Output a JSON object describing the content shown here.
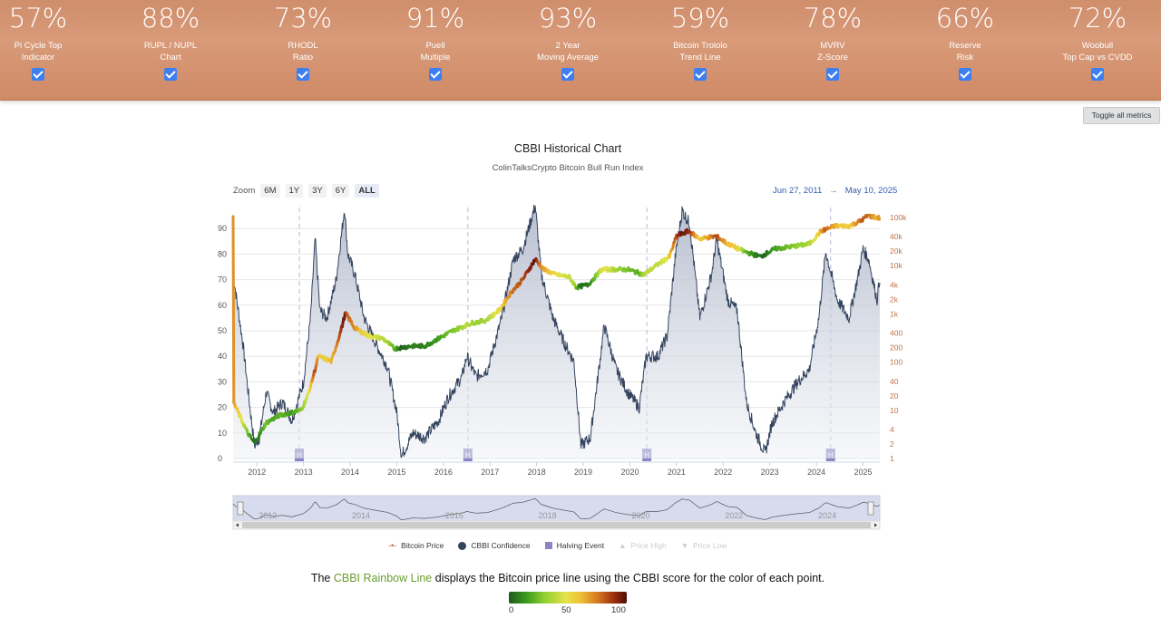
{
  "metrics": [
    {
      "pct": "57%",
      "line1": "Pi Cycle Top",
      "line2": "Indicator"
    },
    {
      "pct": "88%",
      "line1": "RUPL / NUPL",
      "line2": "Chart"
    },
    {
      "pct": "73%",
      "line1": "RHODL",
      "line2": "Ratio"
    },
    {
      "pct": "91%",
      "line1": "Puell",
      "line2": "Multiple"
    },
    {
      "pct": "93%",
      "line1": "2 Year",
      "line2": "Moving Average"
    },
    {
      "pct": "59%",
      "line1": "Bitcoin Trololo",
      "line2": "Trend Line"
    },
    {
      "pct": "78%",
      "line1": "MVRV",
      "line2": "Z-Score"
    },
    {
      "pct": "66%",
      "line1": "Reserve",
      "line2": "Risk"
    },
    {
      "pct": "72%",
      "line1": "Woobull",
      "line2": "Top Cap vs CVDD"
    }
  ],
  "toggle_label": "Toggle all metrics",
  "chart": {
    "title": "CBBI Historical Chart",
    "subtitle": "ColinTalksCrypto Bitcoin Bull Run Index",
    "zoom_label": "Zoom",
    "zoom_options": [
      "6M",
      "1Y",
      "3Y",
      "6Y",
      "ALL"
    ],
    "zoom_active": "ALL",
    "range_from": "Jun 27, 2011",
    "range_arrow": "→",
    "range_to": "May 10, 2025",
    "halving_marker": "H",
    "navigator_labels": [
      "2012",
      "2014",
      "2016",
      "2018",
      "2020",
      "2022",
      "2024"
    ]
  },
  "chart_data": {
    "type": "line",
    "x_ticks": [
      "2012",
      "2013",
      "2014",
      "2015",
      "2016",
      "2017",
      "2018",
      "2019",
      "2020",
      "2021",
      "2022",
      "2023",
      "2024",
      "2025"
    ],
    "y_left_ticks": [
      0,
      10,
      20,
      30,
      40,
      50,
      60,
      70,
      80,
      90
    ],
    "y_right_ticks": [
      "1",
      "2",
      "4",
      "10",
      "20",
      "40",
      "100",
      "200",
      "400",
      "1k",
      "2k",
      "4k",
      "10k",
      "20k",
      "40k",
      "100k"
    ],
    "halving_events": [
      "2012-11-28",
      "2016-07-09",
      "2020-05-11",
      "2024-04-20"
    ],
    "series": [
      {
        "name": "Bitcoin Price",
        "axis": "right",
        "scale": "log",
        "points": [
          [
            2011.5,
            14
          ],
          [
            2011.8,
            3
          ],
          [
            2011.95,
            2.5
          ],
          [
            2012.3,
            5
          ],
          [
            2012.6,
            10
          ],
          [
            2012.9,
            12
          ],
          [
            2013.1,
            20
          ],
          [
            2013.28,
            200
          ],
          [
            2013.35,
            100
          ],
          [
            2013.6,
            100
          ],
          [
            2013.85,
            1100
          ],
          [
            2013.95,
            700
          ],
          [
            2014.1,
            800
          ],
          [
            2014.3,
            450
          ],
          [
            2014.6,
            550
          ],
          [
            2014.9,
            330
          ],
          [
            2015.05,
            180
          ],
          [
            2015.3,
            240
          ],
          [
            2015.6,
            230
          ],
          [
            2015.9,
            400
          ],
          [
            2016.1,
            380
          ],
          [
            2016.45,
            700
          ],
          [
            2016.6,
            620
          ],
          [
            2016.9,
            760
          ],
          [
            2017.1,
            1000
          ],
          [
            2017.4,
            2500
          ],
          [
            2017.7,
            4500
          ],
          [
            2017.96,
            19000
          ],
          [
            2018.1,
            9000
          ],
          [
            2018.4,
            7000
          ],
          [
            2018.7,
            6500
          ],
          [
            2018.95,
            3200
          ],
          [
            2019.2,
            4000
          ],
          [
            2019.48,
            13000
          ],
          [
            2019.7,
            8500
          ],
          [
            2020.0,
            7200
          ],
          [
            2020.2,
            5000
          ],
          [
            2020.4,
            9000
          ],
          [
            2020.7,
            11000
          ],
          [
            2020.98,
            29000
          ],
          [
            2021.28,
            63000
          ],
          [
            2021.5,
            33000
          ],
          [
            2021.86,
            68000
          ],
          [
            2022.1,
            40000
          ],
          [
            2022.45,
            20000
          ],
          [
            2022.7,
            19000
          ],
          [
            2022.88,
            16000
          ],
          [
            2023.1,
            23000
          ],
          [
            2023.5,
            30000
          ],
          [
            2023.8,
            28000
          ],
          [
            2024.0,
            42000
          ],
          [
            2024.2,
            71000
          ],
          [
            2024.6,
            60000
          ],
          [
            2024.95,
            100000
          ],
          [
            2025.1,
            95000
          ],
          [
            2025.28,
            78000
          ],
          [
            2025.36,
            103000
          ]
        ]
      },
      {
        "name": "CBBI Confidence",
        "axis": "left",
        "points": [
          [
            2011.5,
            71
          ],
          [
            2011.7,
            45
          ],
          [
            2011.85,
            20
          ],
          [
            2011.95,
            5
          ],
          [
            2012.05,
            8
          ],
          [
            2012.2,
            26
          ],
          [
            2012.35,
            18
          ],
          [
            2012.55,
            22
          ],
          [
            2012.75,
            15
          ],
          [
            2012.9,
            24
          ],
          [
            2013.0,
            30
          ],
          [
            2013.15,
            55
          ],
          [
            2013.25,
            86
          ],
          [
            2013.35,
            58
          ],
          [
            2013.5,
            55
          ],
          [
            2013.7,
            70
          ],
          [
            2013.88,
            98
          ],
          [
            2013.95,
            80
          ],
          [
            2014.1,
            72
          ],
          [
            2014.3,
            55
          ],
          [
            2014.55,
            45
          ],
          [
            2014.8,
            36
          ],
          [
            2015.0,
            18
          ],
          [
            2015.1,
            1
          ],
          [
            2015.35,
            10
          ],
          [
            2015.6,
            8
          ],
          [
            2015.9,
            15
          ],
          [
            2016.1,
            24
          ],
          [
            2016.4,
            32
          ],
          [
            2016.5,
            40
          ],
          [
            2016.7,
            32
          ],
          [
            2016.95,
            35
          ],
          [
            2017.25,
            55
          ],
          [
            2017.5,
            78
          ],
          [
            2017.7,
            82
          ],
          [
            2017.97,
            99
          ],
          [
            2018.1,
            72
          ],
          [
            2018.35,
            55
          ],
          [
            2018.6,
            45
          ],
          [
            2018.8,
            38
          ],
          [
            2018.95,
            5
          ],
          [
            2019.15,
            8
          ],
          [
            2019.45,
            52
          ],
          [
            2019.7,
            35
          ],
          [
            2019.95,
            26
          ],
          [
            2020.2,
            20
          ],
          [
            2020.35,
            40
          ],
          [
            2020.6,
            40
          ],
          [
            2020.8,
            48
          ],
          [
            2020.98,
            80
          ],
          [
            2021.12,
            97
          ],
          [
            2021.28,
            92
          ],
          [
            2021.5,
            55
          ],
          [
            2021.75,
            72
          ],
          [
            2021.86,
            86
          ],
          [
            2022.1,
            62
          ],
          [
            2022.3,
            58
          ],
          [
            2022.5,
            22
          ],
          [
            2022.7,
            10
          ],
          [
            2022.9,
            2
          ],
          [
            2023.05,
            14
          ],
          [
            2023.3,
            22
          ],
          [
            2023.6,
            30
          ],
          [
            2023.85,
            35
          ],
          [
            2024.05,
            55
          ],
          [
            2024.2,
            81
          ],
          [
            2024.45,
            62
          ],
          [
            2024.7,
            55
          ],
          [
            2024.9,
            72
          ],
          [
            2025.0,
            82
          ],
          [
            2025.12,
            78
          ],
          [
            2025.3,
            62
          ],
          [
            2025.38,
            74
          ]
        ]
      }
    ],
    "rainbow_line": [
      [
        2011.5,
        22
      ],
      [
        2011.8,
        10
      ],
      [
        2011.95,
        6
      ],
      [
        2012.2,
        14
      ],
      [
        2012.5,
        17
      ],
      [
        2012.75,
        18
      ],
      [
        2012.95,
        19
      ],
      [
        2013.1,
        25
      ],
      [
        2013.25,
        35
      ],
      [
        2013.32,
        40
      ],
      [
        2013.6,
        38
      ],
      [
        2013.8,
        50
      ],
      [
        2013.9,
        57
      ],
      [
        2014.1,
        51
      ],
      [
        2014.4,
        48
      ],
      [
        2014.7,
        47
      ],
      [
        2014.95,
        43
      ],
      [
        2015.3,
        44
      ],
      [
        2015.6,
        44
      ],
      [
        2015.9,
        47
      ],
      [
        2016.2,
        50
      ],
      [
        2016.6,
        53
      ],
      [
        2016.9,
        54
      ],
      [
        2017.2,
        58
      ],
      [
        2017.45,
        65
      ],
      [
        2017.7,
        70
      ],
      [
        2017.97,
        78
      ],
      [
        2018.15,
        74
      ],
      [
        2018.4,
        72
      ],
      [
        2018.7,
        71
      ],
      [
        2018.85,
        67
      ],
      [
        2019.1,
        68
      ],
      [
        2019.4,
        74
      ],
      [
        2019.7,
        74
      ],
      [
        2019.95,
        74
      ],
      [
        2020.3,
        72
      ],
      [
        2020.6,
        76
      ],
      [
        2020.85,
        79
      ],
      [
        2021.0,
        87
      ],
      [
        2021.25,
        89
      ],
      [
        2021.5,
        86
      ],
      [
        2021.85,
        87
      ],
      [
        2022.1,
        84
      ],
      [
        2022.45,
        81
      ],
      [
        2022.8,
        79
      ],
      [
        2023.1,
        82
      ],
      [
        2023.5,
        83
      ],
      [
        2023.85,
        84
      ],
      [
        2024.1,
        89
      ],
      [
        2024.4,
        91
      ],
      [
        2024.7,
        91
      ],
      [
        2024.95,
        93
      ],
      [
        2025.1,
        95
      ],
      [
        2025.38,
        94
      ]
    ],
    "legend": [
      {
        "label": "Bitcoin Price",
        "dim": false
      },
      {
        "label": "CBBI Confidence",
        "dim": false
      },
      {
        "label": "Halving Event",
        "dim": false
      },
      {
        "label": "Price High",
        "dim": true
      },
      {
        "label": "Price Low",
        "dim": true
      }
    ]
  },
  "caption": {
    "pre": "The ",
    "rainbow": "CBBI Rainbow Line",
    "post": " displays the Bitcoin price line using the CBBI score for the color of each point."
  },
  "gradient_labels": [
    "0",
    "50",
    "100"
  ]
}
